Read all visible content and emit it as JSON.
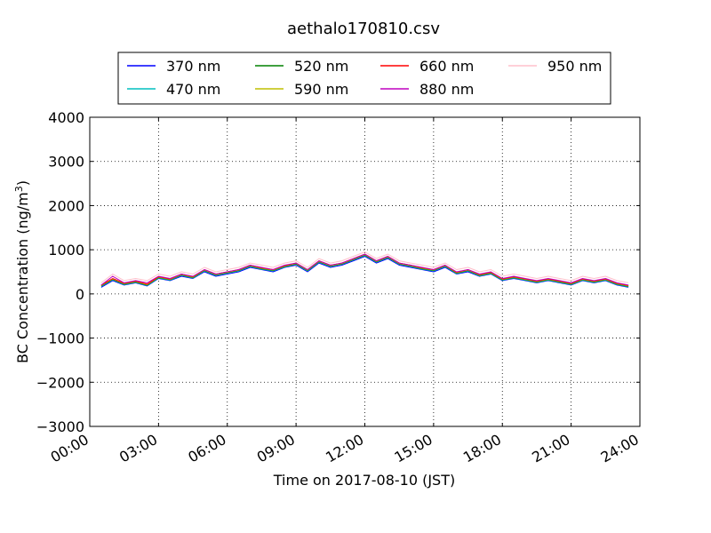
{
  "chart_data": {
    "type": "line",
    "title": "aethalo170810.csv",
    "xlabel": "Time on 2017-08-10 (JST)",
    "ylabel": "BC Concentration (ng/m³)",
    "ylabel_main": "BC Concentration (ng/m",
    "ylabel_sup": "3",
    "ylabel_end": ")",
    "xlim_hours": [
      0,
      24
    ],
    "ylim": [
      -3000,
      4000
    ],
    "xticks": [
      {
        "hour": 0,
        "label": "00:00"
      },
      {
        "hour": 3,
        "label": "03:00"
      },
      {
        "hour": 6,
        "label": "06:00"
      },
      {
        "hour": 9,
        "label": "09:00"
      },
      {
        "hour": 12,
        "label": "12:00"
      },
      {
        "hour": 15,
        "label": "15:00"
      },
      {
        "hour": 18,
        "label": "18:00"
      },
      {
        "hour": 21,
        "label": "21:00"
      },
      {
        "hour": 24,
        "label": "24:00"
      }
    ],
    "yticks": [
      {
        "value": -3000,
        "label": "−3000"
      },
      {
        "value": -2000,
        "label": "−2000"
      },
      {
        "value": -1000,
        "label": "−1000"
      },
      {
        "value": 0,
        "label": "0"
      },
      {
        "value": 1000,
        "label": "1000"
      },
      {
        "value": 2000,
        "label": "2000"
      },
      {
        "value": 3000,
        "label": "3000"
      },
      {
        "value": 4000,
        "label": "4000"
      }
    ],
    "grid": true,
    "legend_position": "top-center",
    "series": [
      {
        "name": "370 nm",
        "color": "#0000ff",
        "x_hours": [
          0.5,
          1,
          1.5,
          2,
          2.5,
          3,
          3.5,
          4,
          4.5,
          5,
          5.5,
          6,
          6.5,
          7,
          7.5,
          8,
          8.5,
          9,
          9.5,
          10,
          10.5,
          11,
          11.5,
          12,
          12.5,
          13,
          13.5,
          14,
          14.5,
          15,
          15.5,
          16,
          16.5,
          17,
          17.5,
          18,
          18.5,
          19,
          19.5,
          20,
          20.5,
          21,
          21.5,
          22,
          22.5,
          23,
          23.5
        ],
        "values": [
          150,
          300,
          200,
          250,
          180,
          350,
          300,
          400,
          350,
          500,
          400,
          450,
          500,
          600,
          550,
          500,
          600,
          650,
          500,
          700,
          600,
          650,
          750,
          850,
          700,
          800,
          650,
          600,
          550,
          500,
          600,
          450,
          500,
          400,
          450,
          300,
          350,
          300,
          250,
          300,
          250,
          200,
          300,
          250,
          300,
          200,
          150
        ]
      },
      {
        "name": "470 nm",
        "color": "#00bfbf",
        "x_hours": [
          0.5,
          1,
          1.5,
          2,
          2.5,
          3,
          3.5,
          4,
          4.5,
          5,
          5.5,
          6,
          6.5,
          7,
          7.5,
          8,
          8.5,
          9,
          9.5,
          10,
          10.5,
          11,
          11.5,
          12,
          12.5,
          13,
          13.5,
          14,
          14.5,
          15,
          15.5,
          16,
          16.5,
          17,
          17.5,
          18,
          18.5,
          19,
          19.5,
          20,
          20.5,
          21,
          21.5,
          22,
          22.5,
          23,
          23.5
        ],
        "values": [
          170,
          320,
          210,
          260,
          190,
          360,
          310,
          420,
          360,
          520,
          420,
          470,
          520,
          620,
          560,
          520,
          610,
          670,
          520,
          720,
          620,
          670,
          770,
          870,
          720,
          820,
          670,
          620,
          560,
          520,
          620,
          460,
          520,
          410,
          460,
          310,
          360,
          310,
          260,
          310,
          260,
          210,
          310,
          260,
          310,
          210,
          160
        ]
      },
      {
        "name": "520 nm",
        "color": "#008000",
        "x_hours": [
          0.5,
          1,
          1.5,
          2,
          2.5,
          3,
          3.5,
          4,
          4.5,
          5,
          5.5,
          6,
          6.5,
          7,
          7.5,
          8,
          8.5,
          9,
          9.5,
          10,
          10.5,
          11,
          11.5,
          12,
          12.5,
          13,
          13.5,
          14,
          14.5,
          15,
          15.5,
          16,
          16.5,
          17,
          17.5,
          18,
          18.5,
          19,
          19.5,
          20,
          20.5,
          21,
          21.5,
          22,
          22.5,
          23,
          23.5
        ],
        "values": [
          180,
          330,
          220,
          270,
          200,
          370,
          320,
          430,
          370,
          530,
          430,
          480,
          530,
          630,
          570,
          530,
          620,
          680,
          530,
          730,
          630,
          680,
          780,
          880,
          730,
          830,
          680,
          630,
          570,
          530,
          630,
          470,
          530,
          420,
          470,
          320,
          370,
          320,
          270,
          320,
          270,
          220,
          320,
          270,
          320,
          220,
          170
        ]
      },
      {
        "name": "590 nm",
        "color": "#bfbf00",
        "x_hours": [
          0.5,
          1,
          1.5,
          2,
          2.5,
          3,
          3.5,
          4,
          4.5,
          5,
          5.5,
          6,
          6.5,
          7,
          7.5,
          8,
          8.5,
          9,
          9.5,
          10,
          10.5,
          11,
          11.5,
          12,
          12.5,
          13,
          13.5,
          14,
          14.5,
          15,
          15.5,
          16,
          16.5,
          17,
          17.5,
          18,
          18.5,
          19,
          19.5,
          20,
          20.5,
          21,
          21.5,
          22,
          22.5,
          23,
          23.5
        ],
        "values": [
          190,
          340,
          230,
          280,
          210,
          380,
          330,
          440,
          380,
          540,
          440,
          490,
          540,
          640,
          580,
          540,
          630,
          690,
          540,
          740,
          640,
          690,
          790,
          890,
          740,
          840,
          690,
          640,
          580,
          540,
          640,
          480,
          540,
          430,
          480,
          330,
          380,
          330,
          280,
          330,
          280,
          230,
          330,
          280,
          330,
          230,
          180
        ]
      },
      {
        "name": "660 nm",
        "color": "#ff0000",
        "x_hours": [
          0.5,
          1,
          1.5,
          2,
          2.5,
          3,
          3.5,
          4,
          4.5,
          5,
          5.5,
          6,
          6.5,
          7,
          7.5,
          8,
          8.5,
          9,
          9.5,
          10,
          10.5,
          11,
          11.5,
          12,
          12.5,
          13,
          13.5,
          14,
          14.5,
          15,
          15.5,
          16,
          16.5,
          17,
          17.5,
          18,
          18.5,
          19,
          19.5,
          20,
          20.5,
          21,
          21.5,
          22,
          22.5,
          23,
          23.5
        ],
        "values": [
          200,
          350,
          240,
          290,
          220,
          390,
          340,
          450,
          390,
          550,
          450,
          500,
          550,
          650,
          590,
          550,
          640,
          700,
          550,
          750,
          650,
          700,
          800,
          900,
          750,
          850,
          700,
          650,
          590,
          550,
          650,
          490,
          550,
          440,
          490,
          340,
          390,
          340,
          290,
          340,
          290,
          240,
          340,
          290,
          340,
          240,
          190
        ]
      },
      {
        "name": "880 nm",
        "color": "#bf00bf",
        "x_hours": [
          0.5,
          1,
          1.5,
          2,
          2.5,
          3,
          3.5,
          4,
          4.5,
          5,
          5.5,
          6,
          6.5,
          7,
          7.5,
          8,
          8.5,
          9,
          9.5,
          10,
          10.5,
          11,
          11.5,
          12,
          12.5,
          13,
          13.5,
          14,
          14.5,
          15,
          15.5,
          16,
          16.5,
          17,
          17.5,
          18,
          18.5,
          19,
          19.5,
          20,
          20.5,
          21,
          21.5,
          22,
          22.5,
          23,
          23.5
        ],
        "values": [
          200,
          400,
          250,
          300,
          250,
          400,
          350,
          450,
          400,
          550,
          450,
          500,
          550,
          650,
          600,
          550,
          650,
          700,
          550,
          750,
          650,
          700,
          800,
          900,
          750,
          850,
          700,
          650,
          600,
          550,
          650,
          500,
          550,
          450,
          500,
          350,
          400,
          350,
          300,
          350,
          300,
          250,
          350,
          300,
          350,
          250,
          200
        ]
      },
      {
        "name": "950 nm",
        "color": "#ffc0cb",
        "x_hours": [
          0.5,
          1,
          1.5,
          2,
          2.5,
          3,
          3.5,
          4,
          4.5,
          5,
          5.5,
          6,
          6.5,
          7,
          7.5,
          8,
          8.5,
          9,
          9.5,
          10,
          10.5,
          11,
          11.5,
          12,
          12.5,
          13,
          13.5,
          14,
          14.5,
          15,
          15.5,
          16,
          16.5,
          17,
          17.5,
          18,
          18.5,
          19,
          19.5,
          20,
          20.5,
          21,
          21.5,
          22,
          22.5,
          23,
          23.5
        ],
        "values": [
          250,
          450,
          300,
          350,
          300,
          450,
          400,
          500,
          450,
          600,
          500,
          550,
          600,
          700,
          650,
          600,
          700,
          750,
          600,
          800,
          700,
          750,
          850,
          950,
          800,
          900,
          750,
          700,
          650,
          600,
          700,
          550,
          600,
          500,
          550,
          400,
          450,
          400,
          350,
          400,
          350,
          300,
          400,
          350,
          400,
          300,
          250
        ]
      }
    ]
  }
}
